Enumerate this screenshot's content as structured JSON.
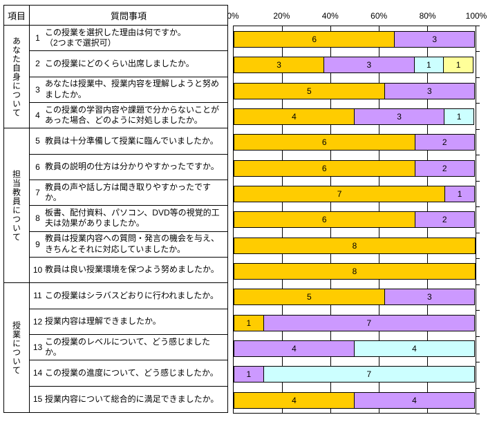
{
  "table": {
    "header": {
      "item_label": "項目",
      "question_label": "質問事項"
    },
    "categories": [
      {
        "label": "あなた自身について",
        "question_range": "1-4"
      },
      {
        "label": "担当教員について",
        "question_range": "5-10"
      },
      {
        "label": "授業について",
        "question_range": "11-15"
      }
    ],
    "questions": [
      {
        "no": "1",
        "text": "この授業を選択した理由は何ですか。\n（2つまで選択可）"
      },
      {
        "no": "2",
        "text": "この授業にどのくらい出席しましたか。"
      },
      {
        "no": "3",
        "text": "あなたは授業中、授業内容を理解しようと努めましたか。"
      },
      {
        "no": "4",
        "text": "この授業の学習内容や課題で分からないことがあった場合、どのように対処しましたか。"
      },
      {
        "no": "5",
        "text": "教員は十分準備して授業に臨んでいましたか。"
      },
      {
        "no": "6",
        "text": "教員の説明の仕方は分かりやすかったですか。"
      },
      {
        "no": "7",
        "text": "教員の声や話し方は聞き取りやすかったですか。"
      },
      {
        "no": "8",
        "text": "板書、配付資料、パソコン、DVD等の視覚的工夫は効果がありましたか。"
      },
      {
        "no": "9",
        "text": "教員は授業内容への質問・発言の機会を与え、きちんとそれに対応していましたか。"
      },
      {
        "no": "10",
        "text": "教員は良い授業環境を保つよう努めましたか。"
      },
      {
        "no": "11",
        "text": "この授業はシラバスどおりに行われましたか。"
      },
      {
        "no": "12",
        "text": "授業内容は理解できましたか。"
      },
      {
        "no": "13",
        "text": "この授業のレベルについて、どう感じましたか。"
      },
      {
        "no": "14",
        "text": "この授業の進度について、どう感じましたか。"
      },
      {
        "no": "15",
        "text": "授業内容について総合的に満足できましたか。"
      }
    ]
  },
  "chart_data": {
    "type": "bar",
    "orientation": "horizontal",
    "stacked": true,
    "normalized_to_percent": true,
    "axis_position": "top",
    "xticks": [
      "0%",
      "20%",
      "40%",
      "60%",
      "80%",
      "100%"
    ],
    "xlim": [
      0,
      100
    ],
    "grid": true,
    "legend": "none",
    "categories": [
      "1",
      "2",
      "3",
      "4",
      "5",
      "6",
      "7",
      "8",
      "9",
      "10",
      "11",
      "12",
      "13",
      "14",
      "15"
    ],
    "row_totals": [
      9,
      8,
      8,
      8,
      8,
      8,
      8,
      8,
      8,
      8,
      8,
      8,
      8,
      8,
      8
    ],
    "series": [
      {
        "name": "choice-1",
        "color": "#FFCC00",
        "values": [
          6,
          3,
          5,
          4,
          6,
          6,
          7,
          6,
          8,
          8,
          5,
          1,
          0,
          0,
          4
        ]
      },
      {
        "name": "choice-2",
        "color": "#CC99FF",
        "values": [
          3,
          3,
          3,
          3,
          2,
          2,
          1,
          2,
          0,
          0,
          3,
          7,
          4,
          1,
          4
        ]
      },
      {
        "name": "choice-3",
        "color": "#CCFFFF",
        "values": [
          0,
          1,
          0,
          1,
          0,
          0,
          0,
          0,
          0,
          0,
          0,
          0,
          4,
          7,
          0
        ]
      },
      {
        "name": "choice-4",
        "color": "#FFFF99",
        "values": [
          0,
          1,
          0,
          0,
          0,
          0,
          0,
          0,
          0,
          0,
          0,
          0,
          0,
          0,
          0
        ]
      }
    ],
    "segment_labels": "value"
  }
}
